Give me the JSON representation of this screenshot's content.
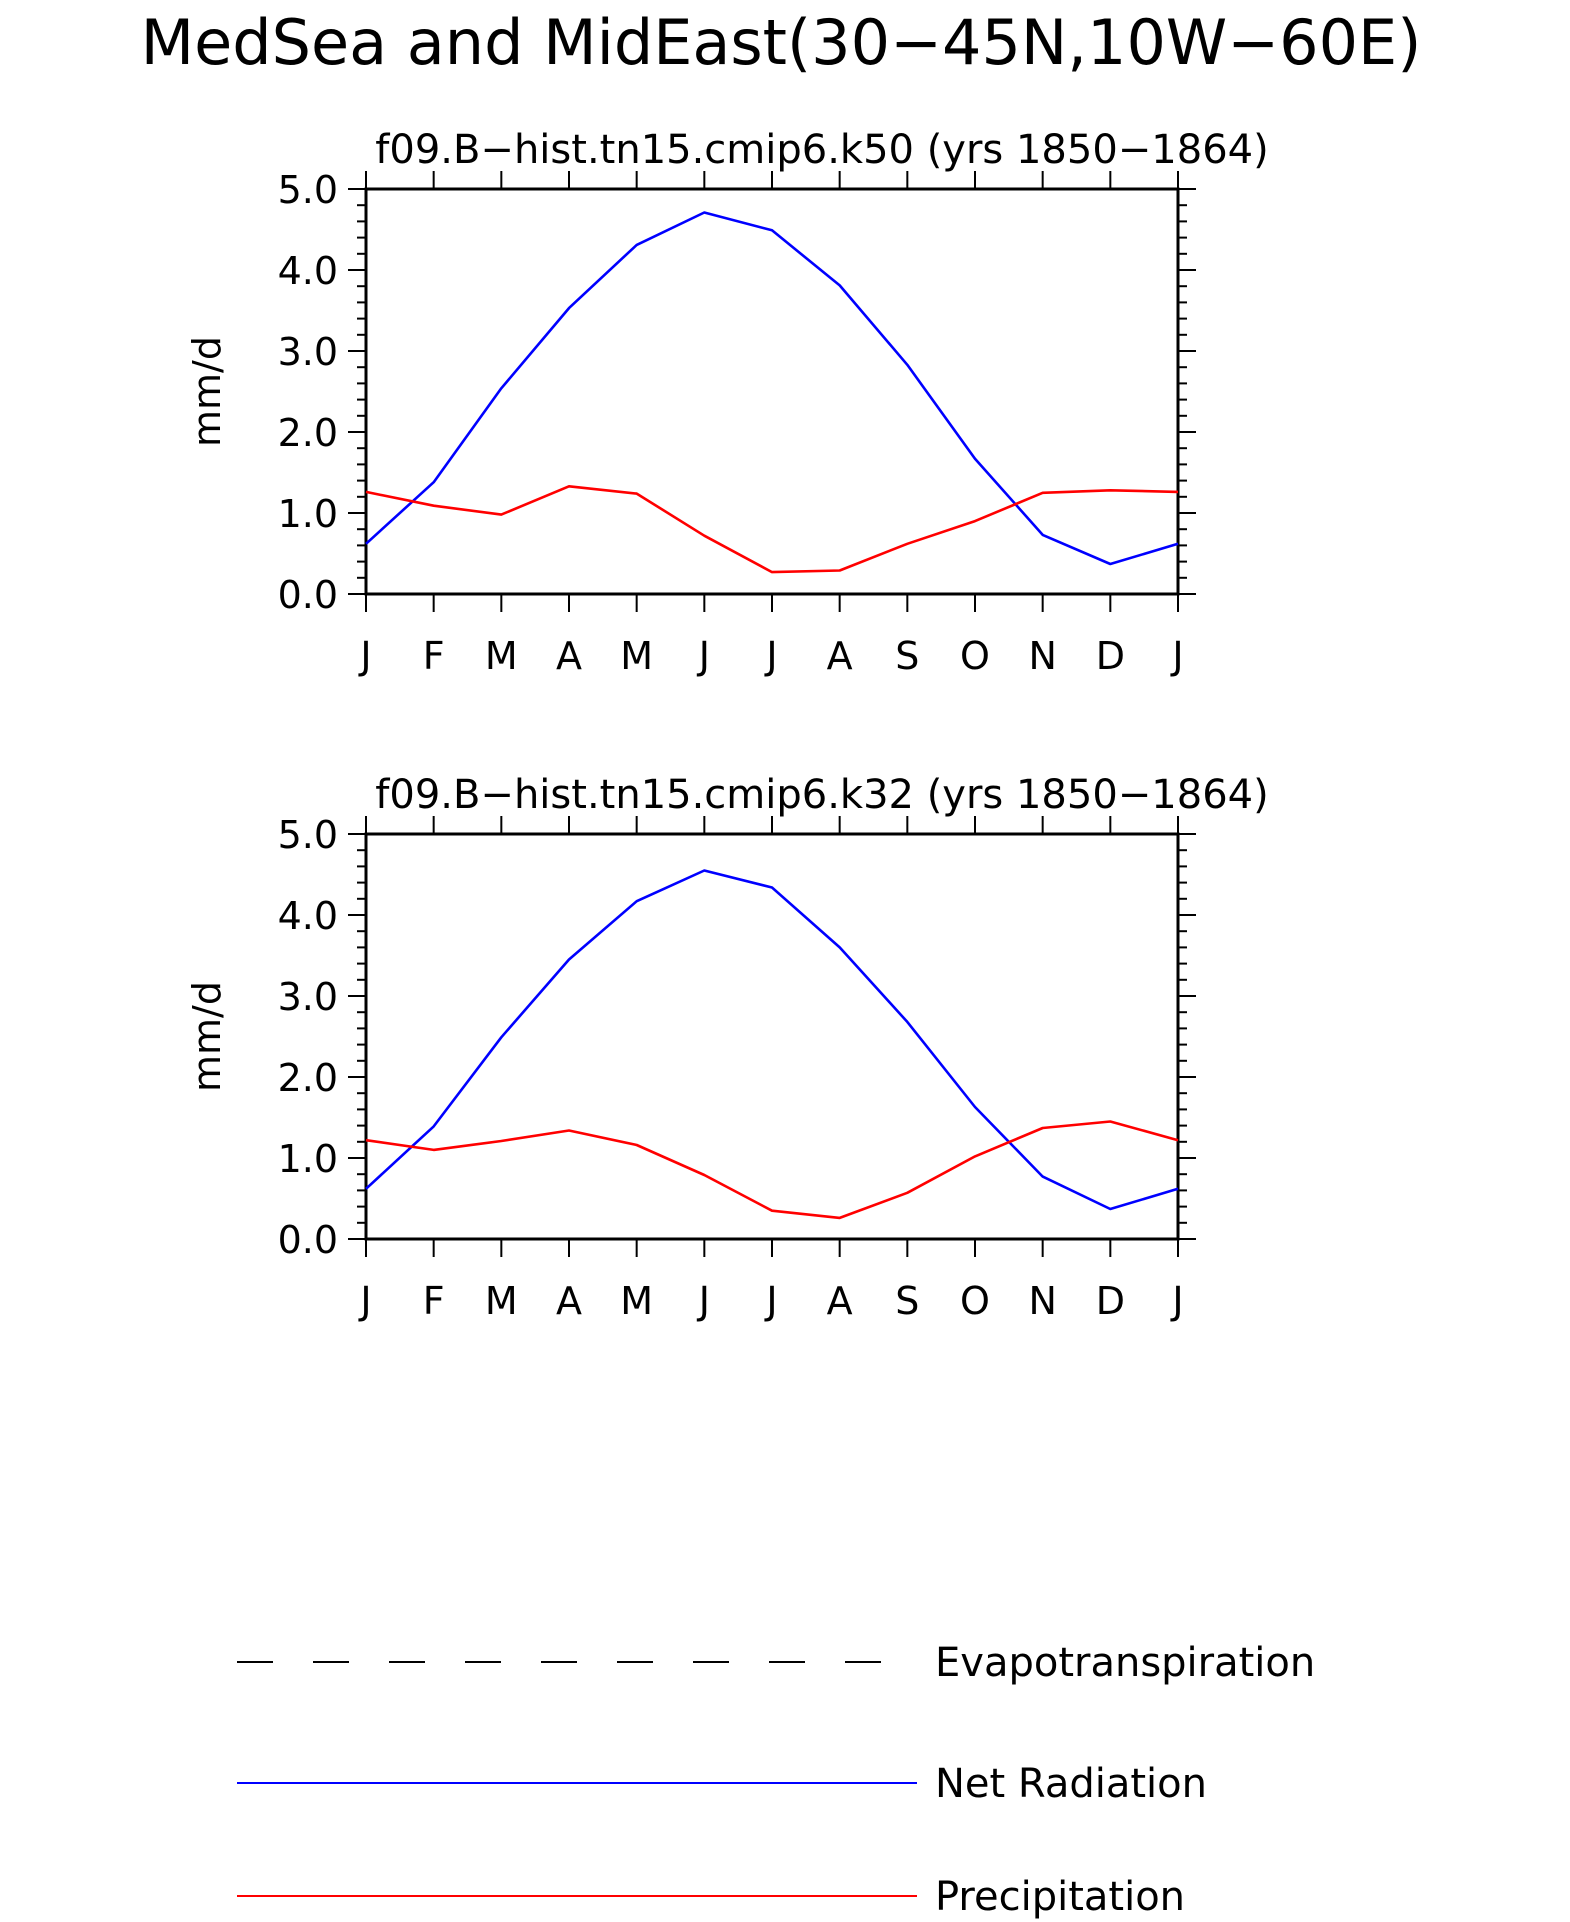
{
  "figure": {
    "title": "MedSea and MidEast(30−45N,10W−60E)"
  },
  "colors": {
    "net_radiation": "#0000ff",
    "precipitation": "#ff0000",
    "evapotranspiration": "#000000",
    "axes": "#000000"
  },
  "legend": {
    "placement": "bottom",
    "items": [
      {
        "label": "Evapotranspiration",
        "style": "dashed",
        "color": "#000000"
      },
      {
        "label": "Net Radiation",
        "style": "solid",
        "color": "#0000ff"
      },
      {
        "label": "Precipitation",
        "style": "solid",
        "color": "#ff0000"
      }
    ]
  },
  "chart_data": [
    {
      "type": "line",
      "title": "f09.B−hist.tn15.cmip6.k50 (yrs 1850−1864)",
      "ylabel": "mm/d",
      "xlabel": "",
      "categories": [
        "J",
        "F",
        "M",
        "A",
        "M",
        "J",
        "J",
        "A",
        "S",
        "O",
        "N",
        "D",
        "J"
      ],
      "ylim": [
        0,
        5
      ],
      "yticks": [
        "0.0",
        "1.0",
        "2.0",
        "3.0",
        "4.0",
        "5.0"
      ],
      "grid": false,
      "series": [
        {
          "name": "Net Radiation",
          "color": "#0000ff",
          "values": [
            0.62,
            1.38,
            2.54,
            3.53,
            4.31,
            4.71,
            4.49,
            3.81,
            2.83,
            1.67,
            0.73,
            0.37,
            0.62
          ]
        },
        {
          "name": "Precipitation",
          "color": "#ff0000",
          "values": [
            1.26,
            1.09,
            0.98,
            1.33,
            1.24,
            0.72,
            0.27,
            0.29,
            0.62,
            0.9,
            1.25,
            1.28,
            1.26
          ]
        }
      ]
    },
    {
      "type": "line",
      "title": "f09.B−hist.tn15.cmip6.k32 (yrs 1850−1864)",
      "ylabel": "mm/d",
      "xlabel": "",
      "categories": [
        "J",
        "F",
        "M",
        "A",
        "M",
        "J",
        "J",
        "A",
        "S",
        "O",
        "N",
        "D",
        "J"
      ],
      "ylim": [
        0,
        5
      ],
      "yticks": [
        "0.0",
        "1.0",
        "2.0",
        "3.0",
        "4.0",
        "5.0"
      ],
      "grid": false,
      "series": [
        {
          "name": "Net Radiation",
          "color": "#0000ff",
          "values": [
            0.62,
            1.39,
            2.49,
            3.45,
            4.17,
            4.55,
            4.34,
            3.6,
            2.68,
            1.63,
            0.77,
            0.37,
            0.62
          ]
        },
        {
          "name": "Precipitation",
          "color": "#ff0000",
          "values": [
            1.22,
            1.1,
            1.21,
            1.34,
            1.16,
            0.79,
            0.35,
            0.26,
            0.57,
            1.02,
            1.37,
            1.45,
            1.22
          ]
        }
      ]
    }
  ]
}
